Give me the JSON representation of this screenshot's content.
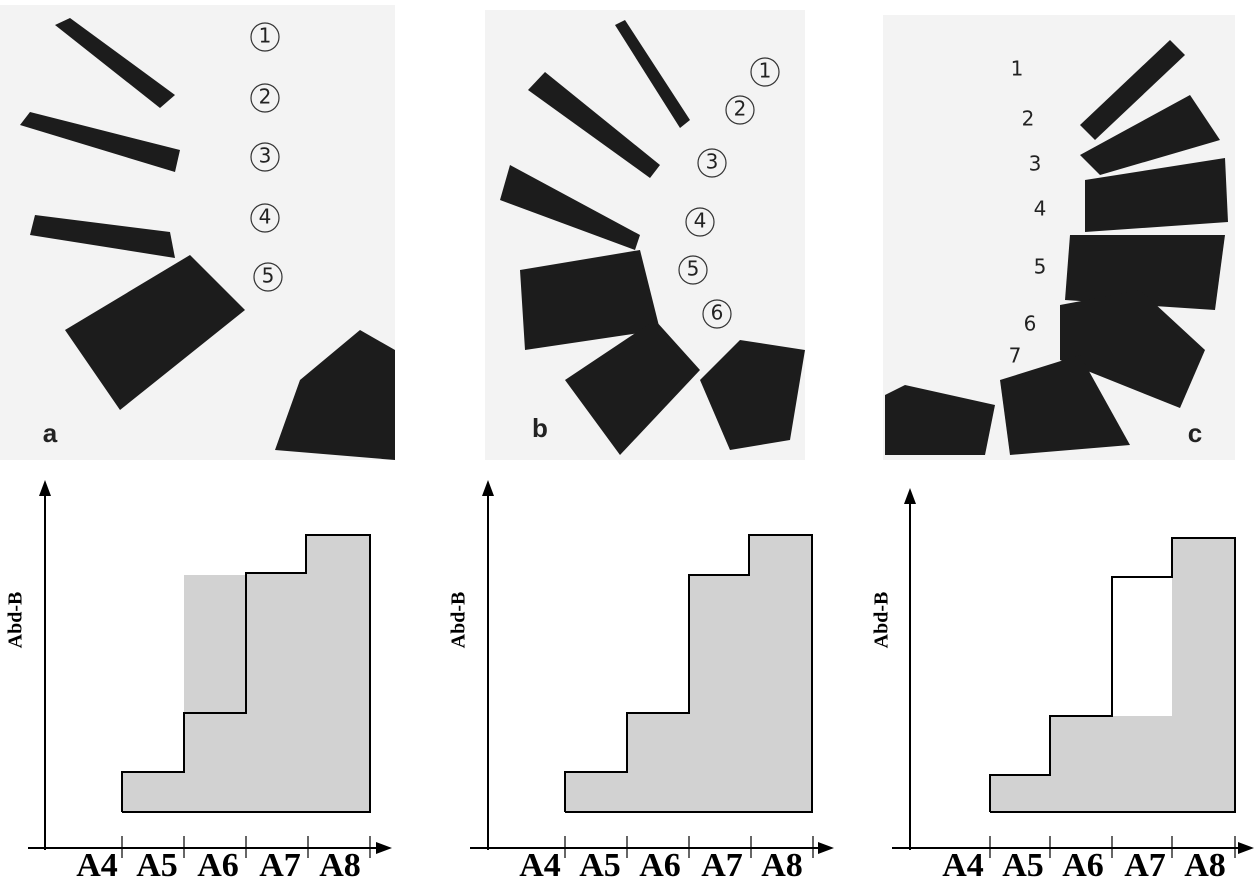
{
  "panels": [
    {
      "label": "a",
      "segments": [
        "1",
        "2",
        "3",
        "4",
        "5"
      ],
      "diagram": {
        "y_label": "Abd-B",
        "x_labels": [
          "A4",
          "A5",
          "A6",
          "A7",
          "A8"
        ]
      }
    },
    {
      "label": "b",
      "segments": [
        "1",
        "2",
        "3",
        "4",
        "5",
        "6"
      ],
      "diagram": {
        "y_label": "Abd-B",
        "x_labels": [
          "A4",
          "A5",
          "A6",
          "A7",
          "A8"
        ]
      }
    },
    {
      "label": "c",
      "segments": [
        "1",
        "2",
        "3",
        "4",
        "5",
        "6",
        "7"
      ],
      "diagram": {
        "y_label": "Abd-B",
        "x_labels": [
          "A4",
          "A5",
          "A6",
          "A7",
          "A8"
        ]
      }
    }
  ]
}
